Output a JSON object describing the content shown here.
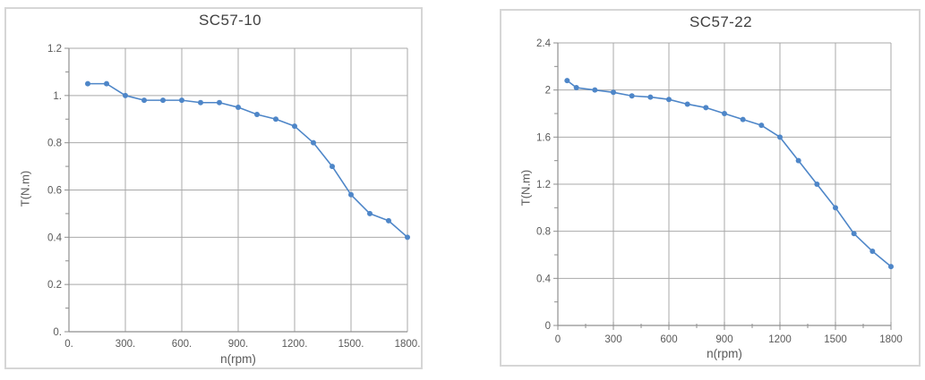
{
  "colors": {
    "series_line": "#4e86c8",
    "gridline": "#a9a9a9",
    "axis_line": "#8f8f8f",
    "axis_text": "#595959",
    "title_text": "#404040",
    "panel_border": "#d6d6d6",
    "background": "#ffffff"
  },
  "chart_data": [
    {
      "type": "line",
      "title": "SC57-10",
      "xlabel": "n(rpm)",
      "ylabel": "T(N.m)",
      "xlim": [
        0,
        1800
      ],
      "ylim": [
        0,
        1.2
      ],
      "x": [
        100,
        200,
        300,
        400,
        500,
        600,
        700,
        800,
        900,
        1000,
        1100,
        1200,
        1300,
        1400,
        1500,
        1600,
        1700,
        1800
      ],
      "y": [
        1.05,
        1.05,
        1.0,
        0.98,
        0.98,
        0.98,
        0.97,
        0.97,
        0.95,
        0.92,
        0.9,
        0.87,
        0.8,
        0.7,
        0.58,
        0.5,
        0.47,
        0.4
      ],
      "x_tick_values": [
        0,
        300,
        600,
        900,
        1200,
        1500,
        1800
      ],
      "x_tick_labels": [
        "0.",
        "300.",
        "600.",
        "900.",
        "1200.",
        "1500.",
        "1800."
      ],
      "y_tick_values": [
        0,
        0.2,
        0.4,
        0.6,
        0.8,
        1,
        1.2
      ],
      "y_tick_labels": [
        "0.",
        "0.2",
        "0.4",
        "0.6",
        "0.8",
        "1.",
        "1.2"
      ],
      "y_minor_step": 0.1,
      "x_minor_step": null,
      "x_axis_ticks": false,
      "grid": true,
      "legend": "none",
      "marker": "circle"
    },
    {
      "type": "line",
      "title": "SC57-22",
      "xlabel": "n(rpm)",
      "ylabel": "T(N.m)",
      "xlim": [
        0,
        1800
      ],
      "ylim": [
        0,
        2.4
      ],
      "x": [
        50,
        100,
        200,
        300,
        400,
        500,
        600,
        700,
        800,
        900,
        1000,
        1100,
        1200,
        1300,
        1400,
        1500,
        1600,
        1700,
        1800
      ],
      "y": [
        2.08,
        2.02,
        2.0,
        1.98,
        1.95,
        1.94,
        1.92,
        1.88,
        1.85,
        1.8,
        1.75,
        1.7,
        1.6,
        1.4,
        1.2,
        1.0,
        0.78,
        0.63,
        0.5
      ],
      "x_tick_values": [
        0,
        300,
        600,
        900,
        1200,
        1500,
        1800
      ],
      "x_tick_labels": [
        "0",
        "300",
        "600",
        "900",
        "1200",
        "1500",
        "1800"
      ],
      "y_tick_values": [
        0,
        0.4,
        0.8,
        1.2,
        1.6,
        2,
        2.4
      ],
      "y_tick_labels": [
        "0",
        "0.4",
        "0.8",
        "1.2",
        "1.6",
        "2",
        "2.4"
      ],
      "y_minor_step": 0.2,
      "x_minor_step": 150,
      "x_axis_ticks": true,
      "grid": true,
      "legend": "none",
      "marker": "circle"
    }
  ]
}
